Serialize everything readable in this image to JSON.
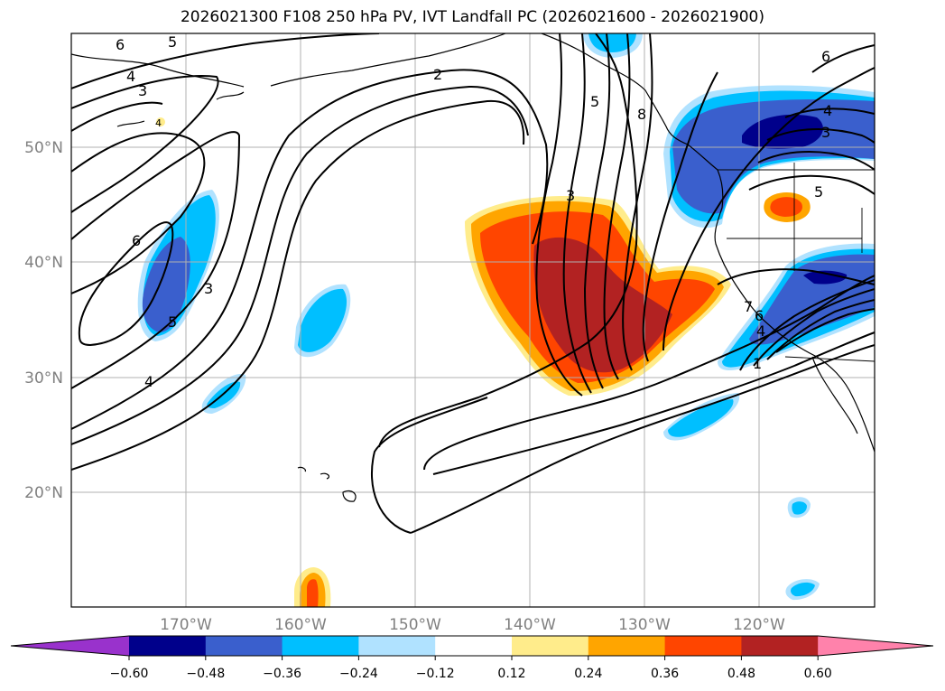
{
  "title": "2026021300 F108 250 hPa PV, IVT Landfall PC (2026021600 - 2026021900)",
  "map": {
    "lat_labels": [
      "50°N",
      "40°N",
      "30°N",
      "20°N"
    ],
    "lon_labels": [
      "170°W",
      "160°W",
      "150°W",
      "140°W",
      "130°W",
      "120°W"
    ],
    "grid": true,
    "contour_labels": [
      "6",
      "5",
      "4",
      "3",
      "2",
      "6",
      "3",
      "5",
      "4",
      "3",
      "5",
      "8",
      "6",
      "4",
      "3",
      "7",
      "6",
      "4",
      "1",
      "5",
      "4"
    ]
  },
  "colorbar": {
    "tick_labels": [
      "−0.60",
      "−0.48",
      "−0.36",
      "−0.24",
      "−0.12",
      "0.12",
      "0.24",
      "0.36",
      "0.48",
      "0.60"
    ],
    "colors": [
      "#9932cc",
      "#00008b",
      "#3a5fcd",
      "#00bfff",
      "#b0e2ff",
      "#ffffff",
      "#ffec8b",
      "#ffa500",
      "#ff4500",
      "#b22222",
      "#ff82ab"
    ]
  }
}
